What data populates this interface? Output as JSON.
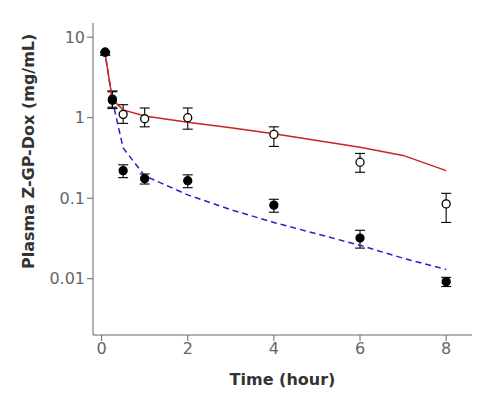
{
  "chart_data": {
    "type": "line",
    "xlabel": "Time (hour)",
    "ylabel": "Plasma Z-GP-Dox (mg/mL)",
    "log": "y",
    "xlim": [
      -0.2,
      8.6
    ],
    "xticks": [
      0,
      2,
      4,
      6,
      8
    ],
    "ylim": [
      0.002,
      15
    ],
    "yticks": [
      0.01,
      0.1,
      1,
      10
    ],
    "grid": false,
    "series": [
      {
        "type": "line",
        "color": "#2222cc",
        "line_style": "dashed",
        "x": [
          0.05,
          0.083,
          0.25,
          0.5,
          1.0,
          2.0,
          3.0,
          4.0,
          5.0,
          6.0,
          7.0,
          8.0
        ],
        "values": [
          7.0,
          6.2,
          1.65,
          0.42,
          0.19,
          0.11,
          0.072,
          0.05,
          0.036,
          0.026,
          0.018,
          0.013
        ]
      },
      {
        "type": "line",
        "color": "#cc2222",
        "line_style": "solid",
        "x": [
          0.05,
          0.083,
          0.25,
          0.5,
          1.0,
          2.0,
          3.0,
          4.0,
          5.0,
          6.0,
          7.0,
          8.0
        ],
        "values": [
          6.8,
          6.2,
          1.68,
          1.25,
          1.05,
          0.88,
          0.75,
          0.63,
          0.52,
          0.43,
          0.34,
          0.22
        ]
      },
      {
        "type": "scatter",
        "marker": "open_circle",
        "color": "black",
        "x": [
          0.083,
          0.25,
          0.5,
          1.0,
          2.0,
          4.0,
          6.0,
          8.0
        ],
        "values": [
          6.5,
          1.7,
          1.1,
          0.97,
          1.0,
          0.62,
          0.28,
          0.085
        ],
        "error_low": [
          0.5,
          0.35,
          0.25,
          0.2,
          0.28,
          0.18,
          0.07,
          0.035
        ],
        "error_high": [
          0.0,
          0.45,
          0.35,
          0.35,
          0.32,
          0.15,
          0.08,
          0.03
        ]
      },
      {
        "type": "scatter",
        "marker": "filled_circle",
        "color": "black",
        "x": [
          0.083,
          0.25,
          0.5,
          1.0,
          2.0,
          4.0,
          6.0,
          8.0
        ],
        "values": [
          6.5,
          1.65,
          0.22,
          0.175,
          0.165,
          0.082,
          0.032,
          0.0092
        ],
        "error_low": [
          0.5,
          0.35,
          0.04,
          0.025,
          0.03,
          0.015,
          0.008,
          0.0012
        ],
        "error_high": [
          0.0,
          0.45,
          0.04,
          0.025,
          0.03,
          0.015,
          0.008,
          0.0012
        ]
      }
    ]
  }
}
